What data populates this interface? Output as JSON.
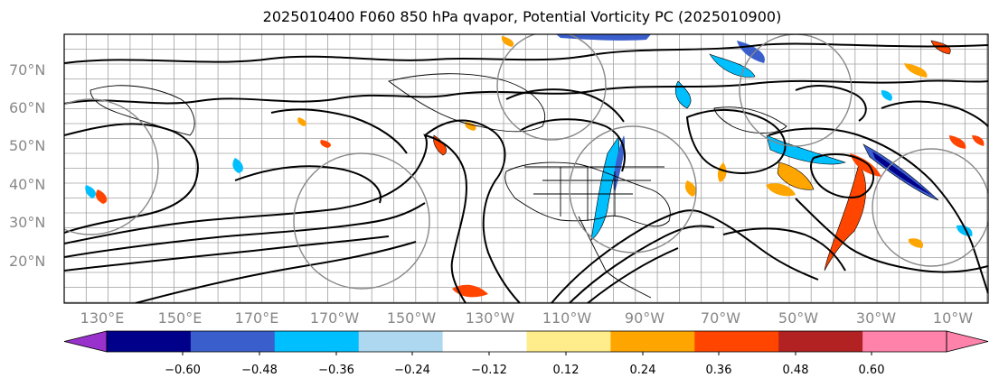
{
  "title": "2025010400 F060 850 hPa qvapor, Potential Vorticity PC (2025010900)",
  "lat_labels": [
    "70°N",
    "60°N",
    "50°N",
    "40°N",
    "30°N",
    "20°N"
  ],
  "lon_labels": [
    "130°E",
    "150°E",
    "170°E",
    "170°W",
    "150°W",
    "130°W",
    "110°W",
    "90°W",
    "70°W",
    "50°W",
    "30°W",
    "10°W"
  ],
  "colorbar": {
    "tick_labels": [
      "−0.60",
      "−0.48",
      "−0.36",
      "−0.24",
      "−0.12",
      "0.12",
      "0.24",
      "0.36",
      "0.48",
      "0.60"
    ],
    "colors": [
      "#9932cc",
      "#00008b",
      "#3a5fcd",
      "#00bfff",
      "#add8f0",
      "#ffffff",
      "#ffec8b",
      "#ffa500",
      "#ff4500",
      "#b22222",
      "#ff82ab",
      "#ff82ab"
    ]
  },
  "colors": {
    "contour": "#000000",
    "grid": "#a0a0a0",
    "label": "#888888"
  }
}
